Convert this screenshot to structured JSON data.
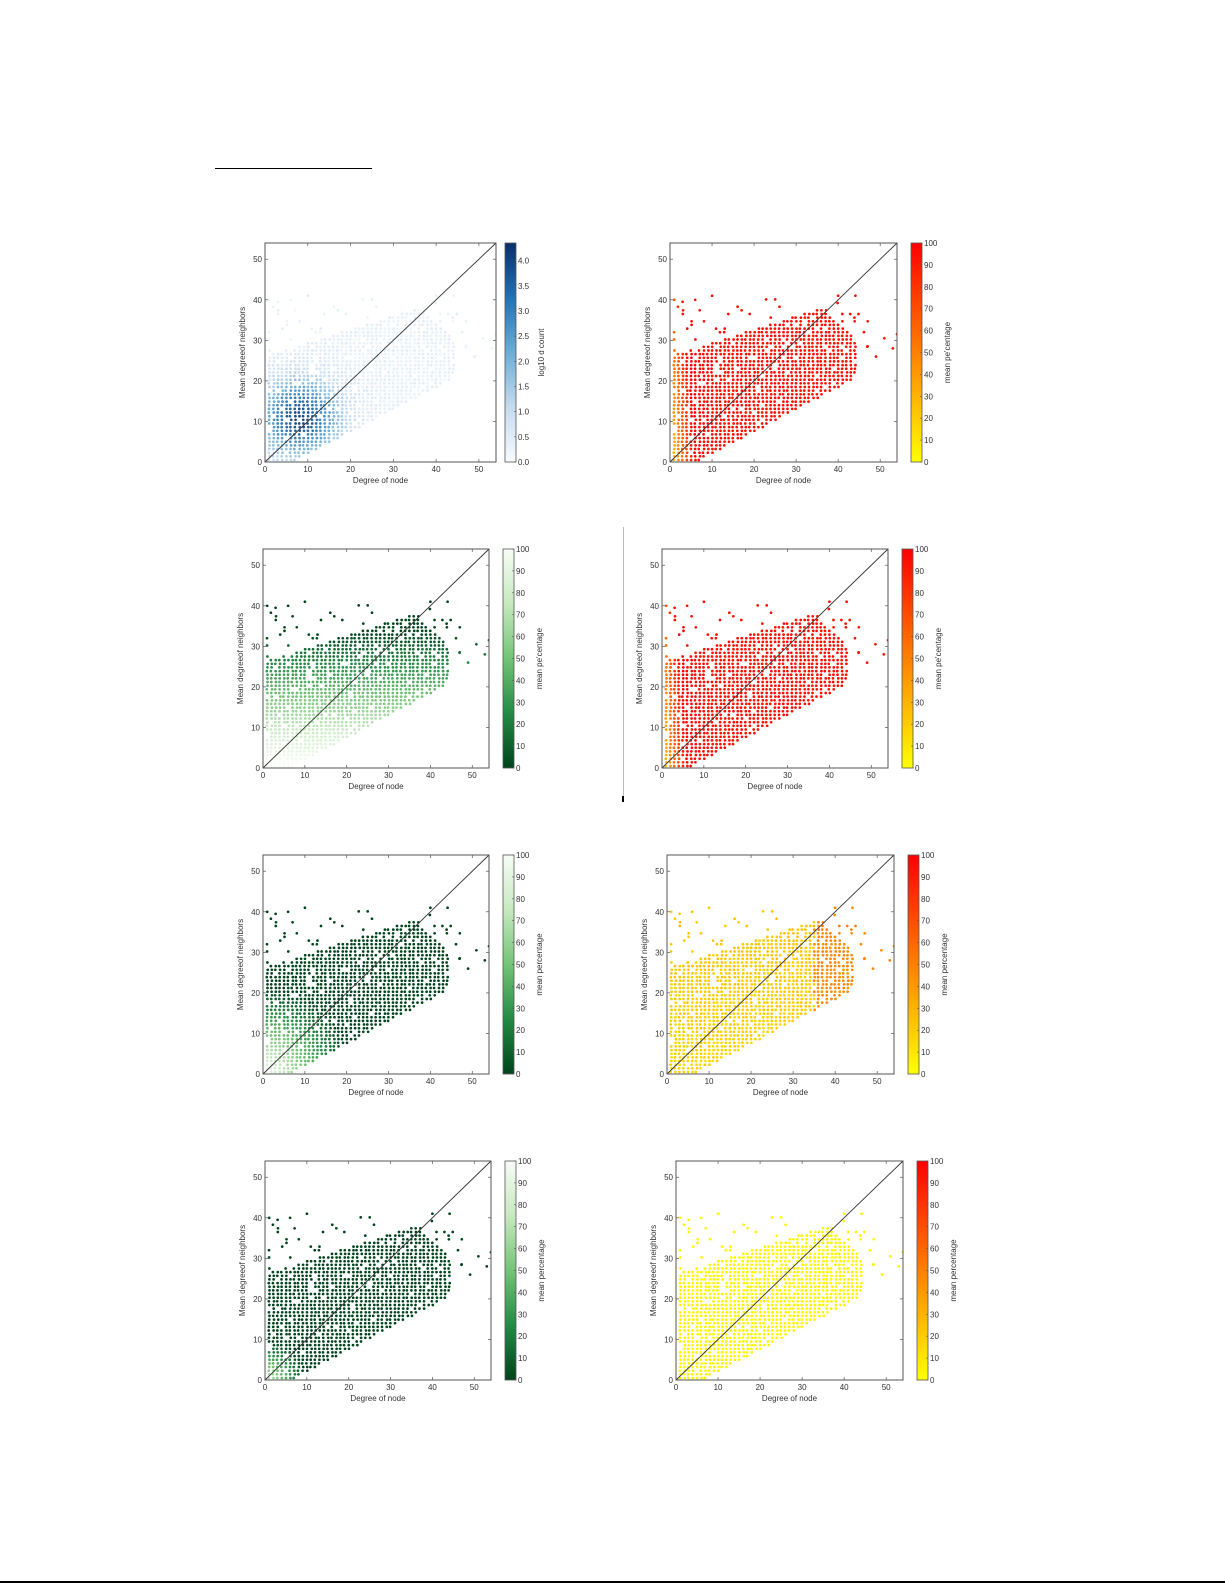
{
  "page": {
    "top_rule": true,
    "bottom_rule": true
  },
  "chart_data": [
    {
      "id": "chart-1",
      "type": "heatmap",
      "subtype": "hexbin",
      "title": "",
      "xlabel": "Degree of node",
      "ylabel": "Mean degreeof neighbors",
      "xlim": [
        0,
        54
      ],
      "ylim": [
        0,
        54
      ],
      "xticks": [
        0,
        10,
        20,
        30,
        40,
        50
      ],
      "yticks": [
        0,
        10,
        20,
        30,
        40,
        50
      ],
      "diagonal_line": "y = x",
      "colorbar": {
        "label": "log10 of count",
        "label_rendered": "log10 d count",
        "ticks": [
          "0.0",
          "0.5",
          "1.0",
          "1.5",
          "2.0",
          "2.5",
          "3.0",
          "3.5",
          "4.0"
        ],
        "range": [
          0,
          4.35
        ],
        "colormap": "Blues",
        "colors": [
          "#f7fbff",
          "#c6dbef",
          "#6baed6",
          "#2171b5",
          "#08306b"
        ]
      },
      "color_mode": "density",
      "description": "Density of nodes; darkest near degree 2-15, mean neighbor degree 3-20"
    },
    {
      "id": "chart-2",
      "type": "scatter",
      "subtype": "hexbin",
      "xlabel": "Degree of node",
      "ylabel": "Mean degreeof neighbors",
      "xlim": [
        0,
        54
      ],
      "ylim": [
        0,
        54
      ],
      "xticks": [
        0,
        10,
        20,
        30,
        40,
        50
      ],
      "yticks": [
        0,
        10,
        20,
        30,
        40,
        50
      ],
      "diagonal_line": "y = x",
      "colorbar": {
        "label": "mean percentage",
        "label_rendered": "mean pe'centage",
        "ticks": [
          "0",
          "10",
          "20",
          "30",
          "40",
          "50",
          "60",
          "70",
          "80",
          "90",
          "100"
        ],
        "range": [
          0,
          100
        ],
        "colormap": "autumn_r",
        "colors": [
          "#ffff00",
          "#ff8000",
          "#ff0000"
        ]
      },
      "color_mode": "mostly_high",
      "description": "Mostly red (~95%) everywhere, yellow/orange at low degree (<5)"
    },
    {
      "id": "chart-3",
      "type": "scatter",
      "subtype": "hexbin",
      "xlabel": "Degree of node",
      "ylabel": "Mean degreeof neighbors",
      "xlim": [
        0,
        54
      ],
      "ylim": [
        0,
        54
      ],
      "xticks": [
        0,
        10,
        20,
        30,
        40,
        50
      ],
      "yticks": [
        0,
        10,
        20,
        30,
        40,
        50
      ],
      "diagonal_line": "y = x",
      "colorbar": {
        "label": "mean percentage",
        "label_rendered": "mean pe'centage",
        "ticks": [
          "0",
          "10",
          "20",
          "30",
          "40",
          "50",
          "60",
          "70",
          "80",
          "90",
          "100"
        ],
        "range": [
          0,
          100
        ],
        "colormap": "Greens_r",
        "colors": [
          "#00441b",
          "#238b45",
          "#74c476",
          "#c7e9c0",
          "#f7fcf5"
        ]
      },
      "color_mode": "green_light_low",
      "description": "Light/white at low mean-degree, medium green at higher values"
    },
    {
      "id": "chart-4",
      "type": "scatter",
      "subtype": "hexbin",
      "xlabel": "Degree of node",
      "ylabel": "Mean degreeof neighbors",
      "xlim": [
        0,
        54
      ],
      "ylim": [
        0,
        54
      ],
      "xticks": [
        0,
        10,
        20,
        30,
        40,
        50
      ],
      "yticks": [
        0,
        10,
        20,
        30,
        40,
        50
      ],
      "diagonal_line": "y = x",
      "colorbar": {
        "label": "mean percentage",
        "label_rendered": "mean pe'centage",
        "ticks": [
          "0",
          "10",
          "20",
          "30",
          "40",
          "50",
          "60",
          "70",
          "80",
          "90",
          "100"
        ],
        "range": [
          0,
          100
        ],
        "colormap": "autumn_r",
        "colors": [
          "#ffff00",
          "#ff8000",
          "#ff0000"
        ]
      },
      "color_mode": "mostly_high",
      "description": "Same as chart 2"
    },
    {
      "id": "chart-5",
      "type": "scatter",
      "subtype": "hexbin",
      "xlabel": "Degree of node",
      "ylabel": "Mean degreeof neighbors",
      "xlim": [
        0,
        54
      ],
      "ylim": [
        0,
        54
      ],
      "xticks": [
        0,
        10,
        20,
        30,
        40,
        50
      ],
      "yticks": [
        0,
        10,
        20,
        30,
        40,
        50
      ],
      "diagonal_line": "y = x",
      "colorbar": {
        "label": "mean percentage",
        "label_rendered": "mean percentage",
        "ticks": [
          "0",
          "10",
          "20",
          "30",
          "40",
          "50",
          "60",
          "70",
          "80",
          "90",
          "100"
        ],
        "range": [
          0,
          100
        ],
        "colormap": "Greens_r",
        "colors": [
          "#00441b",
          "#238b45",
          "#74c476",
          "#c7e9c0",
          "#f7fcf5"
        ]
      },
      "color_mode": "green_mid",
      "description": "Dark green mostly; lighter near origin"
    },
    {
      "id": "chart-6",
      "type": "scatter",
      "subtype": "hexbin",
      "xlabel": "Degree of node",
      "ylabel": "Mean degreeof neighbors",
      "xlim": [
        0,
        54
      ],
      "ylim": [
        0,
        54
      ],
      "xticks": [
        0,
        10,
        20,
        30,
        40,
        50
      ],
      "yticks": [
        0,
        10,
        20,
        30,
        40,
        50
      ],
      "diagonal_line": "y = x",
      "colorbar": {
        "label": "mean percentage",
        "label_rendered": "mean percentage",
        "ticks": [
          "0",
          "10",
          "20",
          "30",
          "40",
          "50",
          "60",
          "70",
          "80",
          "90",
          "100"
        ],
        "range": [
          0,
          100
        ],
        "colormap": "autumn_r",
        "colors": [
          "#ffff00",
          "#ff8000",
          "#ff0000"
        ]
      },
      "color_mode": "yellow_low",
      "description": "Yellow/light orange (~10-30%), more orange at high degree"
    },
    {
      "id": "chart-7",
      "type": "scatter",
      "subtype": "hexbin",
      "xlabel": "Degree of node",
      "ylabel": "Mean degreeof neighbors",
      "xlim": [
        0,
        54
      ],
      "ylim": [
        0,
        54
      ],
      "xticks": [
        0,
        10,
        20,
        30,
        40,
        50
      ],
      "yticks": [
        0,
        10,
        20,
        30,
        40,
        50
      ],
      "diagonal_line": "y = x",
      "colorbar": {
        "label": "mean percentage",
        "label_rendered": "mean percentage",
        "ticks": [
          "0",
          "10",
          "20",
          "30",
          "40",
          "50",
          "60",
          "70",
          "80",
          "90",
          "100"
        ],
        "range": [
          0,
          100
        ],
        "colormap": "Greens_r",
        "colors": [
          "#00441b",
          "#238b45",
          "#74c476",
          "#c7e9c0",
          "#f7fcf5"
        ]
      },
      "color_mode": "green_dark",
      "description": "Mostly dark green (~0-20%), light only very near origin"
    },
    {
      "id": "chart-8",
      "type": "scatter",
      "subtype": "hexbin",
      "xlabel": "Degree of node",
      "ylabel": "Mean degreeof neighbors",
      "xlim": [
        0,
        54
      ],
      "ylim": [
        0,
        54
      ],
      "xticks": [
        0,
        10,
        20,
        30,
        40,
        50
      ],
      "yticks": [
        0,
        10,
        20,
        30,
        40,
        50
      ],
      "diagonal_line": "y = x",
      "colorbar": {
        "label": "mean percentage",
        "label_rendered": "mean percentage",
        "ticks": [
          "0",
          "10",
          "20",
          "30",
          "40",
          "50",
          "60",
          "70",
          "80",
          "90",
          "100"
        ],
        "range": [
          0,
          100
        ],
        "colormap": "autumn_r",
        "colors": [
          "#ffff00",
          "#ff8000",
          "#ff0000"
        ]
      },
      "color_mode": "yellow_all",
      "description": "Almost entirely yellow (~0-5%)"
    }
  ],
  "layout": {
    "panels": [
      {
        "chart": 0,
        "ax": [
          265,
          243,
          231,
          219
        ],
        "cb": [
          505,
          243,
          11,
          219
        ]
      },
      {
        "chart": 1,
        "ax": [
          670,
          243,
          227,
          219
        ],
        "cb": [
          911,
          243,
          11,
          219
        ]
      },
      {
        "chart": 2,
        "ax": [
          263,
          549,
          226,
          219
        ],
        "cb": [
          503,
          549,
          11,
          219
        ]
      },
      {
        "chart": 3,
        "ax": [
          662,
          549,
          226,
          219
        ],
        "cb": [
          902,
          549,
          11,
          219
        ]
      },
      {
        "chart": 4,
        "ax": [
          263,
          855,
          226,
          219
        ],
        "cb": [
          503,
          855,
          11,
          219
        ]
      },
      {
        "chart": 5,
        "ax": [
          667,
          855,
          227,
          219
        ],
        "cb": [
          908,
          855,
          11,
          219
        ]
      },
      {
        "chart": 6,
        "ax": [
          265,
          1161,
          226,
          219
        ],
        "cb": [
          505,
          1161,
          11,
          219
        ]
      },
      {
        "chart": 7,
        "ax": [
          676,
          1161,
          227,
          219
        ],
        "cb": [
          917,
          1161,
          11,
          219
        ]
      }
    ],
    "scatter_gen": {
      "seed": 12345,
      "grid_step": 1.0,
      "row_step": 0.9
    }
  }
}
